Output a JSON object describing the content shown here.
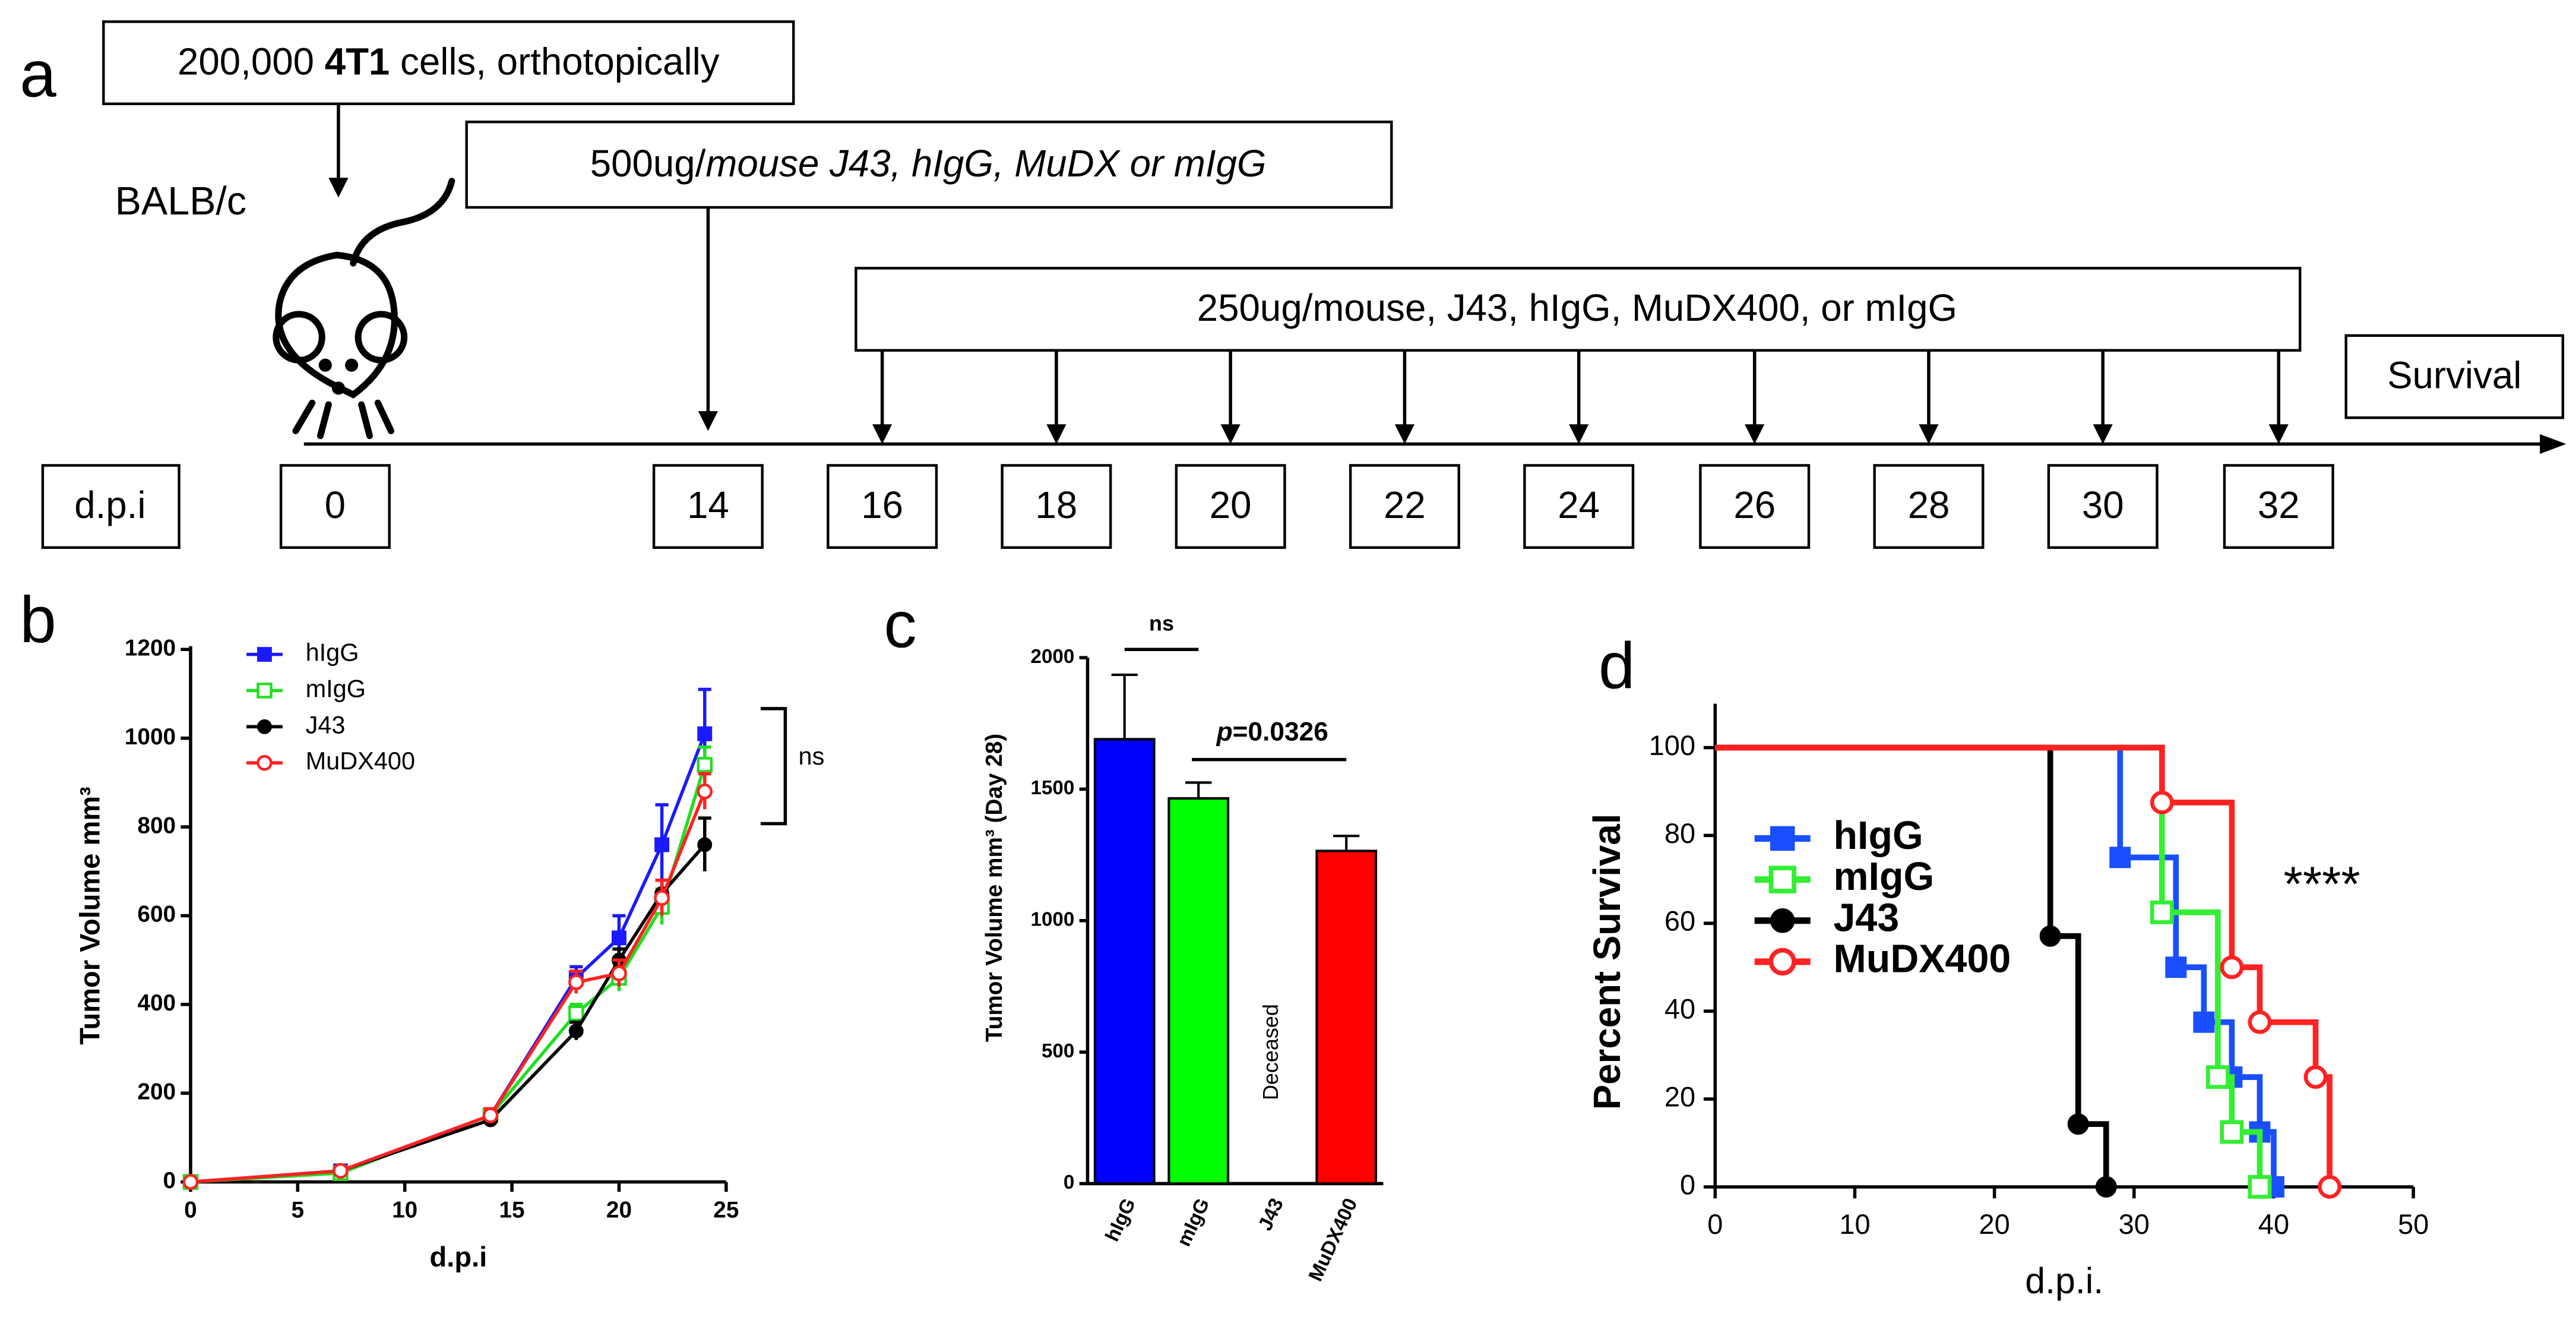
{
  "diagram": {
    "panel_label": "a",
    "cells_text": [
      "200,000 ",
      "4T1",
      " cells, orthotopically"
    ],
    "strain": "BALB/c",
    "first_dose": [
      "500ug/",
      "mouse J43, hIgG, MuDX or mIgG"
    ],
    "later_doses": "250ug/mouse, J43, hIgG, MuDX400, or mIgG",
    "endpoint": "Survival",
    "timeline_label": "d.p.i",
    "days": [
      "0",
      "14",
      "16",
      "18",
      "20",
      "22",
      "24",
      "26",
      "28",
      "30",
      "32"
    ]
  },
  "chart_data": [
    {
      "type": "line",
      "panel_label": "b",
      "x_label": "d.p.i",
      "y_label": "Tumor Volume mm³",
      "x": [
        0,
        7,
        14,
        18,
        20,
        22,
        24
      ],
      "xlim": [
        0,
        25
      ],
      "xticks": [
        0,
        5,
        10,
        15,
        20,
        25
      ],
      "ylim": [
        0,
        1200
      ],
      "yticks": [
        0,
        200,
        400,
        600,
        800,
        1000,
        1200
      ],
      "annotation": "ns",
      "series": [
        {
          "name": "hIgG",
          "color": "#1a1aff",
          "marker": "square",
          "values": [
            0,
            25,
            150,
            460,
            550,
            760,
            1010
          ],
          "errors": [
            null,
            10,
            15,
            25,
            50,
            90,
            100
          ]
        },
        {
          "name": "mIgG",
          "color": "#22dd22",
          "marker": "square-open",
          "values": [
            0,
            20,
            150,
            380,
            460,
            620,
            940
          ],
          "errors": [
            null,
            10,
            15,
            20,
            30,
            40,
            40
          ]
        },
        {
          "name": "J43",
          "color": "#000000",
          "marker": "circle",
          "values": [
            0,
            25,
            140,
            340,
            500,
            650,
            760
          ],
          "errors": [
            null,
            10,
            15,
            20,
            25,
            30,
            60
          ]
        },
        {
          "name": "MuDX400",
          "color": "#ff2222",
          "marker": "circle-open",
          "values": [
            0,
            25,
            150,
            450,
            470,
            640,
            880
          ],
          "errors": [
            null,
            10,
            15,
            25,
            30,
            40,
            40
          ]
        }
      ]
    },
    {
      "type": "bar",
      "panel_label": "c",
      "y_label": "Tumor Volume mm³ (Day 28)",
      "categories": [
        "hIgG",
        "mIgG",
        "J43",
        "MuDX400"
      ],
      "values": [
        1690,
        1465,
        null,
        1265
      ],
      "errors": [
        245,
        60,
        null,
        57
      ],
      "colors": [
        "#0000ff",
        "#00ff00",
        "#000000",
        "#ff0000"
      ],
      "ylim": [
        0,
        2000
      ],
      "yticks": [
        0,
        500,
        1000,
        1500,
        2000
      ],
      "annotations": {
        "ns": "ns",
        "p_value": [
          "p",
          "=0.0326"
        ],
        "missing": "Deceased"
      }
    },
    {
      "type": "step",
      "panel_label": "d",
      "x_label": "d.p.i.",
      "y_label": "Percent Survival",
      "xlim": [
        0,
        50
      ],
      "xticks": [
        0,
        10,
        20,
        30,
        40,
        50
      ],
      "ylim": [
        0,
        110
      ],
      "yticks": [
        0,
        20,
        40,
        60,
        80,
        100
      ],
      "annotation": "****",
      "series": [
        {
          "name": "hIgG",
          "color": "#1a4fff",
          "marker": "square",
          "x": [
            0,
            29,
            33,
            35,
            37,
            39,
            40
          ],
          "values": [
            100,
            75,
            50,
            37.5,
            25,
            12.5,
            0
          ]
        },
        {
          "name": "mIgG",
          "color": "#33ee33",
          "marker": "square-open",
          "x": [
            0,
            32,
            36,
            37,
            39
          ],
          "values": [
            100,
            62.5,
            25,
            12.5,
            0
          ]
        },
        {
          "name": "J43",
          "color": "#000000",
          "marker": "circle",
          "x": [
            0,
            24,
            26,
            28
          ],
          "values": [
            100,
            57.1,
            14.3,
            0
          ]
        },
        {
          "name": "MuDX400",
          "color": "#ff2222",
          "marker": "circle-open",
          "x": [
            0,
            32,
            37,
            39,
            43,
            44
          ],
          "values": [
            100,
            87.5,
            50,
            37.5,
            25,
            0
          ]
        }
      ]
    }
  ]
}
